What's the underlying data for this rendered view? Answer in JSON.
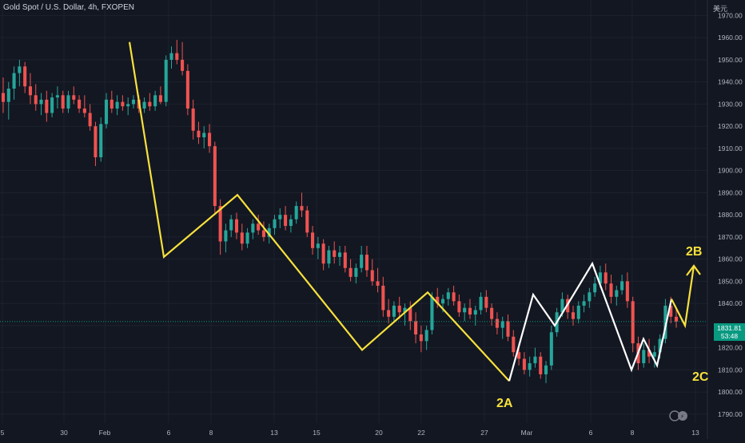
{
  "header": {
    "title": "Gold Spot / U.S. Dollar, 4h, FXOPEN",
    "currency": "美元"
  },
  "price_tag": {
    "price": "1831.81",
    "countdown": "53:48"
  },
  "annotations": {
    "label_2a": "2A",
    "label_2b": "2B",
    "label_2c": "2C"
  },
  "colors": {
    "background": "#131722",
    "up": "#26a69a",
    "down": "#ef5350",
    "pattern_yellow": "#f7e13c",
    "pattern_white": "#ffffff",
    "current_price": "#089981"
  },
  "chart_data": {
    "type": "candlestick",
    "symbol": "Gold Spot / U.S. Dollar",
    "interval": "4h",
    "source": "FXOPEN",
    "ylim": [
      1786,
      1977
    ],
    "y_ticks": [
      1790.0,
      1800.0,
      1810.0,
      1820.0,
      1830.0,
      1840.0,
      1850.0,
      1860.0,
      1870.0,
      1880.0,
      1890.0,
      1900.0,
      1910.0,
      1920.0,
      1930.0,
      1940.0,
      1950.0,
      1960.0,
      1970.0
    ],
    "x_ticks": [
      "5",
      "30",
      "Feb",
      "6",
      "8",
      "13",
      "15",
      "20",
      "22",
      "27",
      "Mar",
      "6",
      "8",
      "13"
    ],
    "current_price": 1831.81,
    "zigzag_yellow": [
      [
        "Feb 2",
        1958
      ],
      [
        "Feb 6",
        1861
      ],
      [
        "Feb 9",
        1889
      ],
      [
        "Feb 17",
        1819
      ],
      [
        "Feb 23",
        1845
      ],
      [
        "Feb 28",
        1805
      ]
    ],
    "zigzag_white": [
      [
        "Feb 28",
        1805
      ],
      [
        "Mar 1",
        1844
      ],
      [
        "Mar 2",
        1830
      ],
      [
        "Mar 6",
        1858
      ],
      [
        "Mar 8",
        1810
      ],
      [
        "Mar 9",
        1824
      ],
      [
        "Mar 10",
        1812
      ],
      [
        "Mar 13",
        1842
      ]
    ],
    "projection_yellow": [
      [
        "Mar 13",
        1842
      ],
      [
        "Mar 14",
        1830
      ],
      [
        "Mar 15",
        1857
      ]
    ],
    "candles": [
      [
        1935,
        1942,
        1926,
        1931
      ],
      [
        1931,
        1940,
        1923,
        1937
      ],
      [
        1937,
        1947,
        1932,
        1944
      ],
      [
        1944,
        1950,
        1938,
        1947
      ],
      [
        1947,
        1949,
        1935,
        1938
      ],
      [
        1938,
        1944,
        1930,
        1934
      ],
      [
        1934,
        1939,
        1927,
        1930
      ],
      [
        1930,
        1935,
        1925,
        1932
      ],
      [
        1932,
        1936,
        1922,
        1926
      ],
      [
        1926,
        1935,
        1924,
        1933
      ],
      [
        1933,
        1938,
        1928,
        1934
      ],
      [
        1934,
        1936,
        1926,
        1928
      ],
      [
        1928,
        1936,
        1926,
        1934
      ],
      [
        1934,
        1938,
        1930,
        1932
      ],
      [
        1932,
        1934,
        1926,
        1928
      ],
      [
        1928,
        1934,
        1924,
        1926
      ],
      [
        1926,
        1930,
        1918,
        1920
      ],
      [
        1920,
        1922,
        1902,
        1906
      ],
      [
        1906,
        1924,
        1904,
        1921
      ],
      [
        1921,
        1935,
        1919,
        1932
      ],
      [
        1932,
        1936,
        1926,
        1928
      ],
      [
        1928,
        1934,
        1925,
        1931
      ],
      [
        1931,
        1934,
        1927,
        1929
      ],
      [
        1929,
        1933,
        1925,
        1930
      ],
      [
        1930,
        1934,
        1928,
        1932
      ],
      [
        1932,
        1934,
        1926,
        1928
      ],
      [
        1928,
        1933,
        1926,
        1931
      ],
      [
        1931,
        1935,
        1927,
        1929
      ],
      [
        1929,
        1936,
        1927,
        1934
      ],
      [
        1934,
        1938,
        1930,
        1931
      ],
      [
        1931,
        1952,
        1929,
        1950
      ],
      [
        1950,
        1956,
        1946,
        1953
      ],
      [
        1953,
        1959,
        1948,
        1950
      ],
      [
        1950,
        1958,
        1943,
        1945
      ],
      [
        1945,
        1948,
        1925,
        1928
      ],
      [
        1928,
        1932,
        1914,
        1918
      ],
      [
        1918,
        1922,
        1912,
        1915
      ],
      [
        1915,
        1920,
        1910,
        1917
      ],
      [
        1917,
        1921,
        1908,
        1911
      ],
      [
        1911,
        1913,
        1880,
        1884
      ],
      [
        1884,
        1887,
        1862,
        1868
      ],
      [
        1868,
        1876,
        1863,
        1873
      ],
      [
        1873,
        1880,
        1870,
        1878
      ],
      [
        1878,
        1881,
        1869,
        1872
      ],
      [
        1872,
        1876,
        1864,
        1867
      ],
      [
        1867,
        1874,
        1865,
        1872
      ],
      [
        1872,
        1878,
        1869,
        1876
      ],
      [
        1876,
        1880,
        1871,
        1873
      ],
      [
        1873,
        1877,
        1868,
        1870
      ],
      [
        1870,
        1876,
        1867,
        1874
      ],
      [
        1874,
        1880,
        1871,
        1878
      ],
      [
        1878,
        1883,
        1874,
        1880
      ],
      [
        1880,
        1884,
        1873,
        1875
      ],
      [
        1875,
        1880,
        1872,
        1878
      ],
      [
        1878,
        1886,
        1876,
        1884
      ],
      [
        1884,
        1890,
        1879,
        1882
      ],
      [
        1882,
        1884,
        1870,
        1872
      ],
      [
        1872,
        1875,
        1862,
        1865
      ],
      [
        1865,
        1870,
        1860,
        1867
      ],
      [
        1867,
        1869,
        1855,
        1858
      ],
      [
        1858,
        1866,
        1856,
        1864
      ],
      [
        1864,
        1868,
        1858,
        1861
      ],
      [
        1861,
        1866,
        1857,
        1863
      ],
      [
        1863,
        1866,
        1854,
        1856
      ],
      [
        1856,
        1860,
        1850,
        1852
      ],
      [
        1852,
        1858,
        1849,
        1856
      ],
      [
        1856,
        1866,
        1854,
        1862
      ],
      [
        1862,
        1866,
        1852,
        1855
      ],
      [
        1855,
        1860,
        1848,
        1850
      ],
      [
        1850,
        1856,
        1845,
        1848
      ],
      [
        1848,
        1852,
        1834,
        1837
      ],
      [
        1837,
        1842,
        1831,
        1834
      ],
      [
        1834,
        1841,
        1832,
        1839
      ],
      [
        1839,
        1843,
        1833,
        1836
      ],
      [
        1836,
        1840,
        1830,
        1838
      ],
      [
        1838,
        1841,
        1828,
        1832
      ],
      [
        1832,
        1836,
        1822,
        1826
      ],
      [
        1826,
        1830,
        1818,
        1823
      ],
      [
        1823,
        1830,
        1819,
        1828
      ],
      [
        1828,
        1845,
        1826,
        1843
      ],
      [
        1843,
        1847,
        1838,
        1840
      ],
      [
        1840,
        1844,
        1836,
        1842
      ],
      [
        1842,
        1847,
        1839,
        1845
      ],
      [
        1845,
        1848,
        1839,
        1841
      ],
      [
        1841,
        1844,
        1834,
        1836
      ],
      [
        1836,
        1840,
        1832,
        1838
      ],
      [
        1838,
        1842,
        1833,
        1835
      ],
      [
        1835,
        1839,
        1830,
        1837
      ],
      [
        1837,
        1845,
        1835,
        1843
      ],
      [
        1843,
        1846,
        1836,
        1838
      ],
      [
        1838,
        1840,
        1830,
        1833
      ],
      [
        1833,
        1836,
        1826,
        1829
      ],
      [
        1829,
        1834,
        1824,
        1832
      ],
      [
        1832,
        1835,
        1823,
        1825
      ],
      [
        1825,
        1828,
        1816,
        1818
      ],
      [
        1818,
        1822,
        1812,
        1815
      ],
      [
        1815,
        1818,
        1808,
        1810
      ],
      [
        1810,
        1816,
        1807,
        1813
      ],
      [
        1813,
        1820,
        1811,
        1816
      ],
      [
        1816,
        1818,
        1806,
        1808
      ],
      [
        1808,
        1814,
        1804,
        1812
      ],
      [
        1812,
        1830,
        1810,
        1827
      ],
      [
        1827,
        1838,
        1825,
        1836
      ],
      [
        1836,
        1845,
        1834,
        1842
      ],
      [
        1842,
        1844,
        1833,
        1836
      ],
      [
        1836,
        1839,
        1830,
        1833
      ],
      [
        1833,
        1841,
        1831,
        1839
      ],
      [
        1839,
        1844,
        1836,
        1841
      ],
      [
        1841,
        1847,
        1838,
        1845
      ],
      [
        1845,
        1852,
        1843,
        1849
      ],
      [
        1849,
        1857,
        1847,
        1854
      ],
      [
        1854,
        1858,
        1846,
        1849
      ],
      [
        1849,
        1853,
        1840,
        1843
      ],
      [
        1843,
        1848,
        1839,
        1846
      ],
      [
        1846,
        1853,
        1844,
        1850
      ],
      [
        1850,
        1854,
        1838,
        1841
      ],
      [
        1841,
        1843,
        1818,
        1822
      ],
      [
        1822,
        1825,
        1810,
        1813
      ],
      [
        1813,
        1822,
        1811,
        1819
      ],
      [
        1819,
        1824,
        1813,
        1816
      ],
      [
        1816,
        1821,
        1811,
        1818
      ],
      [
        1818,
        1826,
        1815,
        1824
      ],
      [
        1824,
        1842,
        1822,
        1839
      ],
      [
        1839,
        1843,
        1831,
        1834
      ],
      [
        1834,
        1838,
        1829,
        1831.81
      ]
    ]
  }
}
